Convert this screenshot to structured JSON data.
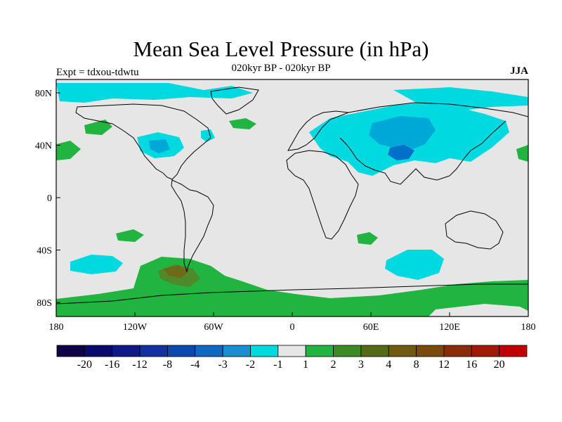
{
  "header": {
    "title": "Mean Sea Level Pressure (in hPa)",
    "subtitle": "020kyr BP - 020kyr BP",
    "left_label": "Expt = tdxou-tdwtu",
    "right_label": "JJA"
  },
  "map": {
    "x_ticks": [
      "180",
      "120W",
      "60W",
      "0",
      "60E",
      "120E",
      "180"
    ],
    "y_ticks": [
      "80N",
      "40N",
      "0",
      "40S",
      "80S"
    ],
    "colors": {
      "background": "#e6e6e6",
      "cyan": "#00d9e0",
      "blue_mid": "#00a8d8",
      "blue_deep": "#0070c8",
      "green": "#21b441",
      "olive": "#4f8a2a",
      "brown": "#6e6a1a",
      "coast": "#000000"
    }
  },
  "colorbar": {
    "colors": [
      "#10004a",
      "#0a0a6e",
      "#0f1a88",
      "#1530a0",
      "#0a4aae",
      "#1068c0",
      "#1a8ed0",
      "#00d9e0",
      "#e6e6e6",
      "#21b441",
      "#3c8a22",
      "#556a14",
      "#6e5a10",
      "#7a4a0a",
      "#8a2c08",
      "#a01a06",
      "#c00000"
    ],
    "labels": [
      "-20",
      "-16",
      "-12",
      "-8",
      "-4",
      "-3",
      "-2",
      "-1",
      "1",
      "2",
      "3",
      "4",
      "8",
      "12",
      "16",
      "20"
    ]
  }
}
